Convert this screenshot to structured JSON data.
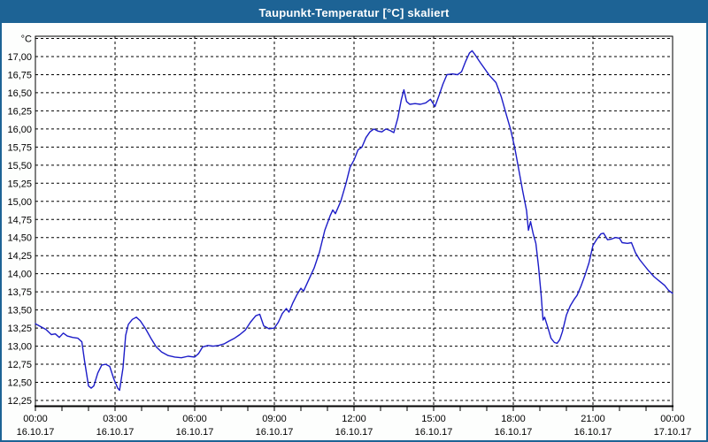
{
  "window": {
    "title": "Taupunkt-Temperatur [°C] skaliert"
  },
  "colors": {
    "titlebar": "#1d6395",
    "window_border": "#1d6395",
    "window_background": "#fdfefd",
    "plot_background": "#ffffff",
    "grid": "#000000",
    "axis": "#000000",
    "label_text": "#000000",
    "curve": "#1c1cc8"
  },
  "chart_data": {
    "type": "line",
    "title": "Taupunkt-Temperatur [°C] skaliert",
    "unit_label": "°C",
    "grid": "dashed",
    "legend_position": "none",
    "x_axis": {
      "range_hours": [
        0,
        24
      ],
      "minor_tick_every_hours": 1,
      "major_tick_every_hours": 3,
      "ticks": [
        {
          "hour": 0,
          "time": "00:00",
          "date": "16.10.17"
        },
        {
          "hour": 3,
          "time": "03:00",
          "date": "16.10.17"
        },
        {
          "hour": 6,
          "time": "06:00",
          "date": "16.10.17"
        },
        {
          "hour": 9,
          "time": "09:00",
          "date": "16.10.17"
        },
        {
          "hour": 12,
          "time": "12:00",
          "date": "16.10.17"
        },
        {
          "hour": 15,
          "time": "15:00",
          "date": "16.10.17"
        },
        {
          "hour": 18,
          "time": "18:00",
          "date": "16.10.17"
        },
        {
          "hour": 21,
          "time": "21:00",
          "date": "16.10.17"
        },
        {
          "hour": 24,
          "time": "00:00",
          "date": "17.10.17"
        }
      ]
    },
    "y_axis": {
      "range": [
        12.17,
        17.28
      ],
      "grid_step": 0.25,
      "top_gridline_value": 17.25,
      "tick_values": [
        17.0,
        16.75,
        16.5,
        16.25,
        16.0,
        15.75,
        15.5,
        15.25,
        15.0,
        14.75,
        14.5,
        14.25,
        14.0,
        13.75,
        13.5,
        13.25,
        13.0,
        12.75,
        12.5,
        12.25
      ],
      "tick_labels": [
        "17,00",
        "16,75",
        "16,50",
        "16,25",
        "16,00",
        "15,75",
        "15,50",
        "15,25",
        "15,00",
        "14,75",
        "14,50",
        "14,25",
        "14,00",
        "13,75",
        "13,50",
        "13,25",
        "13,00",
        "12,75",
        "12,50",
        "12,25"
      ]
    },
    "series": [
      {
        "name": "Taupunkt-Temperatur",
        "color": "#1c1cc8",
        "points": [
          [
            0,
            13.31
          ],
          [
            0.2,
            13.27
          ],
          [
            0.4,
            13.23
          ],
          [
            0.6,
            13.16
          ],
          [
            0.75,
            13.17
          ],
          [
            0.9,
            13.12
          ],
          [
            1.05,
            13.18
          ],
          [
            1.2,
            13.14
          ],
          [
            1.4,
            13.12
          ],
          [
            1.6,
            13.11
          ],
          [
            1.75,
            13.06
          ],
          [
            1.85,
            12.8
          ],
          [
            2,
            12.45
          ],
          [
            2.1,
            12.42
          ],
          [
            2.2,
            12.45
          ],
          [
            2.35,
            12.63
          ],
          [
            2.5,
            12.74
          ],
          [
            2.65,
            12.75
          ],
          [
            2.8,
            12.72
          ],
          [
            2.95,
            12.55
          ],
          [
            3.1,
            12.42
          ],
          [
            3.17,
            12.39
          ],
          [
            3.3,
            12.7
          ],
          [
            3.4,
            13.15
          ],
          [
            3.5,
            13.3
          ],
          [
            3.65,
            13.37
          ],
          [
            3.8,
            13.4
          ],
          [
            3.95,
            13.35
          ],
          [
            4.15,
            13.24
          ],
          [
            4.35,
            13.11
          ],
          [
            4.55,
            12.99
          ],
          [
            4.75,
            12.92
          ],
          [
            5,
            12.87
          ],
          [
            5.25,
            12.85
          ],
          [
            5.5,
            12.84
          ],
          [
            5.75,
            12.86
          ],
          [
            6,
            12.85
          ],
          [
            6.15,
            12.9
          ],
          [
            6.3,
            12.99
          ],
          [
            6.5,
            13.01
          ],
          [
            6.7,
            13.0
          ],
          [
            6.9,
            13.01
          ],
          [
            7.1,
            13.03
          ],
          [
            7.3,
            13.07
          ],
          [
            7.5,
            13.11
          ],
          [
            7.7,
            13.16
          ],
          [
            7.9,
            13.22
          ],
          [
            8.1,
            13.33
          ],
          [
            8.3,
            13.42
          ],
          [
            8.45,
            13.44
          ],
          [
            8.6,
            13.28
          ],
          [
            8.8,
            13.24
          ],
          [
            9,
            13.25
          ],
          [
            9.15,
            13.33
          ],
          [
            9.3,
            13.45
          ],
          [
            9.45,
            13.52
          ],
          [
            9.55,
            13.47
          ],
          [
            9.7,
            13.6
          ],
          [
            9.85,
            13.71
          ],
          [
            10,
            13.8
          ],
          [
            10.1,
            13.76
          ],
          [
            10.3,
            13.92
          ],
          [
            10.5,
            14.08
          ],
          [
            10.7,
            14.3
          ],
          [
            10.9,
            14.6
          ],
          [
            11.1,
            14.8
          ],
          [
            11.2,
            14.88
          ],
          [
            11.3,
            14.83
          ],
          [
            11.5,
            15.0
          ],
          [
            11.7,
            15.25
          ],
          [
            11.85,
            15.47
          ],
          [
            12,
            15.57
          ],
          [
            12.15,
            15.71
          ],
          [
            12.3,
            15.75
          ],
          [
            12.45,
            15.88
          ],
          [
            12.6,
            15.96
          ],
          [
            12.75,
            16.0
          ],
          [
            12.9,
            15.97
          ],
          [
            13.05,
            15.96
          ],
          [
            13.2,
            16.0
          ],
          [
            13.35,
            15.98
          ],
          [
            13.5,
            15.95
          ],
          [
            13.65,
            16.15
          ],
          [
            13.78,
            16.4
          ],
          [
            13.88,
            16.54
          ],
          [
            13.98,
            16.38
          ],
          [
            14.1,
            16.34
          ],
          [
            14.3,
            16.35
          ],
          [
            14.5,
            16.34
          ],
          [
            14.7,
            16.36
          ],
          [
            14.88,
            16.41
          ],
          [
            15.05,
            16.31
          ],
          [
            15.2,
            16.46
          ],
          [
            15.35,
            16.62
          ],
          [
            15.5,
            16.75
          ],
          [
            15.7,
            16.76
          ],
          [
            15.9,
            16.75
          ],
          [
            16.05,
            16.79
          ],
          [
            16.2,
            16.93
          ],
          [
            16.35,
            17.05
          ],
          [
            16.45,
            17.08
          ],
          [
            16.55,
            17.03
          ],
          [
            16.75,
            16.92
          ],
          [
            17.1,
            16.74
          ],
          [
            17.35,
            16.64
          ],
          [
            17.55,
            16.44
          ],
          [
            17.75,
            16.18
          ],
          [
            17.9,
            15.99
          ],
          [
            18.05,
            15.75
          ],
          [
            18.2,
            15.45
          ],
          [
            18.35,
            15.15
          ],
          [
            18.5,
            14.87
          ],
          [
            18.57,
            14.6
          ],
          [
            18.65,
            14.72
          ],
          [
            18.75,
            14.55
          ],
          [
            18.85,
            14.42
          ],
          [
            18.95,
            14.1
          ],
          [
            19.05,
            13.7
          ],
          [
            19.12,
            13.36
          ],
          [
            19.18,
            13.4
          ],
          [
            19.3,
            13.26
          ],
          [
            19.42,
            13.11
          ],
          [
            19.55,
            13.05
          ],
          [
            19.65,
            13.04
          ],
          [
            19.75,
            13.09
          ],
          [
            19.85,
            13.2
          ],
          [
            20,
            13.43
          ],
          [
            20.15,
            13.56
          ],
          [
            20.3,
            13.65
          ],
          [
            20.4,
            13.7
          ],
          [
            20.55,
            13.83
          ],
          [
            20.7,
            13.98
          ],
          [
            20.85,
            14.15
          ],
          [
            21,
            14.39
          ],
          [
            21.15,
            14.48
          ],
          [
            21.3,
            14.55
          ],
          [
            21.4,
            14.56
          ],
          [
            21.55,
            14.47
          ],
          [
            21.7,
            14.48
          ],
          [
            21.85,
            14.5
          ],
          [
            22,
            14.49
          ],
          [
            22.1,
            14.43
          ],
          [
            22.3,
            14.42
          ],
          [
            22.45,
            14.43
          ],
          [
            22.6,
            14.29
          ],
          [
            22.75,
            14.2
          ],
          [
            22.9,
            14.13
          ],
          [
            23.1,
            14.04
          ],
          [
            23.3,
            13.96
          ],
          [
            23.5,
            13.9
          ],
          [
            23.7,
            13.84
          ],
          [
            23.85,
            13.77
          ],
          [
            24,
            13.73
          ]
        ]
      }
    ]
  }
}
